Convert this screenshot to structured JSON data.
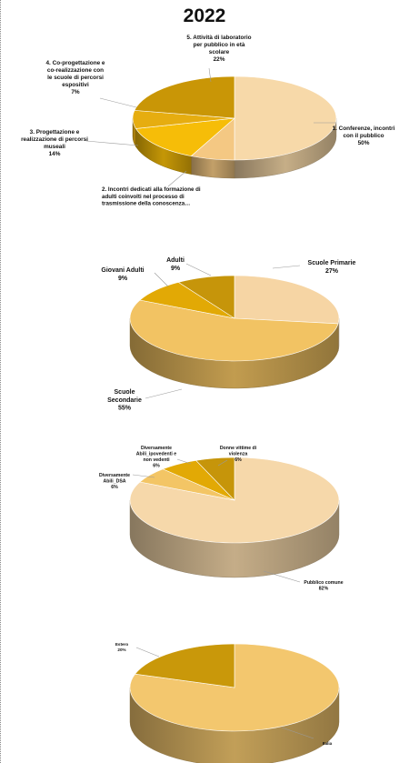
{
  "page": {
    "year": "2022",
    "accent": "#e2a905"
  },
  "chart_data": [
    {
      "type": "pie",
      "title": "2022",
      "slices": [
        {
          "label": "1. Conferenze, incontri con il pubblico",
          "value": 50,
          "pct": "50%",
          "color": "#f7d9a9"
        },
        {
          "label": "2. Incontri dedicati alla formazione di adulti coinvolti nel processo di trasmissione della conoscenza…",
          "value": 7,
          "pct": "",
          "color": "#f4c883"
        },
        {
          "label": "3. Progettazione e realizzazione di percorsi museali",
          "value": 14,
          "pct": "14%",
          "color": "#f6bd08"
        },
        {
          "label": "4. Co-progettazione e co-realizzazione con le scuole di percorsi espositivi",
          "value": 7,
          "pct": "7%",
          "color": "#e6ad10"
        },
        {
          "label": "5. Attività di laboratorio per pubblico in età scolare",
          "value": 22,
          "pct": "22%",
          "color": "#c99606"
        }
      ]
    },
    {
      "type": "pie",
      "slices": [
        {
          "label": "Scuole Primarie",
          "value": 27,
          "pct": "27%",
          "color": "#f6d5a4"
        },
        {
          "label": "Scuole Secondarie",
          "value": 55,
          "pct": "55%",
          "color": "#f2c363"
        },
        {
          "label": "Giovani Adulti",
          "value": 9,
          "pct": "9%",
          "color": "#e2a905"
        },
        {
          "label": "Adulti",
          "value": 9,
          "pct": "9%",
          "color": "#c6950a"
        }
      ]
    },
    {
      "type": "pie",
      "slices": [
        {
          "label": "Pubblico comune",
          "value": 82,
          "pct": "82%",
          "color": "#f6d8aa"
        },
        {
          "label": "Diversamente Abili_DSA",
          "value": 6,
          "pct": "6%",
          "color": "#f3c565"
        },
        {
          "label": "Diversamente Abili_ipovedenti e non vedenti",
          "value": 6,
          "pct": "6%",
          "color": "#e2a905"
        },
        {
          "label": "Donne vittime di violenza",
          "value": 6,
          "pct": "6%",
          "color": "#c6950a"
        }
      ]
    },
    {
      "type": "pie",
      "slices": [
        {
          "label": "Italia",
          "value": 80,
          "pct": "",
          "color": "#f3c76e"
        },
        {
          "label": "Estero",
          "value": 20,
          "pct": "20%",
          "color": "#c9980a"
        }
      ]
    }
  ]
}
